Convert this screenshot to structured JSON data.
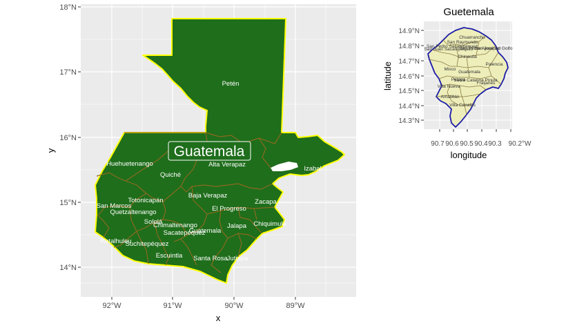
{
  "main_map": {
    "xlabel": "x",
    "ylabel": "y",
    "x_ticks": [
      "92°W",
      "91°W",
      "90°W",
      "89°W"
    ],
    "y_ticks": [
      "18°N",
      "17°N",
      "16°N",
      "15°N",
      "14°N"
    ],
    "title_label": "Guatemala",
    "colors": {
      "panel": "#ebebeb",
      "grid": "#ffffff",
      "fill": "#1f6e1c",
      "border": "#ffff00",
      "dept_border": "#8a6a1e",
      "label": "#ffffff"
    },
    "departments": [
      "Petén",
      "Huehuetenango",
      "Alta Verapaz",
      "Quiché",
      "Izabal",
      "Totonicapán",
      "Baja Verapaz",
      "Zacapa",
      "San Marcos",
      "El Progreso",
      "Quetzaltenango",
      "Sololá",
      "Chimaltenango",
      "Chiquimula",
      "Jalapa",
      "Sacatepéquez",
      "Guatemala",
      "Retalhuleu",
      "Suchitepéquez",
      "Escuintla",
      "Santa Rosa",
      "Jutiapa"
    ]
  },
  "inset_map": {
    "title": "Guetemala",
    "xlabel": "longitude",
    "ylabel": "latitude",
    "x_ticks": [
      "90.7°W",
      "90.6°W",
      "90.5°W",
      "90.4°W",
      "90.3°W",
      "90.2°W"
    ],
    "x_ticks_display": [
      "90.7",
      "90.6",
      "90.5",
      "90.4",
      "90.3",
      "90.2°W"
    ],
    "y_ticks": [
      "14.9°N",
      "14.8°N",
      "14.7°N",
      "14.6°N",
      "14.5°N",
      "14.4°N",
      "14.3°N"
    ],
    "colors": {
      "panel": "#ebebeb",
      "fill": "#eeeebb",
      "outline": "#1a1aa8",
      "muni_border": "#8a7a40"
    },
    "municipalities": [
      "San Pedro Sacatepéquez",
      "San Raymundo",
      "Chuarrancho",
      "San Juan Sacatepéquez",
      "Chinautla",
      "San José del Golfo",
      "San Pedro Ayampuc",
      "Mixco",
      "Guatemala",
      "Palencia",
      "Santa Catarina Pinula",
      "Fraijanes",
      "Villa Nueva",
      "Petapa",
      "Villa Canales",
      "Amatitlán"
    ]
  }
}
